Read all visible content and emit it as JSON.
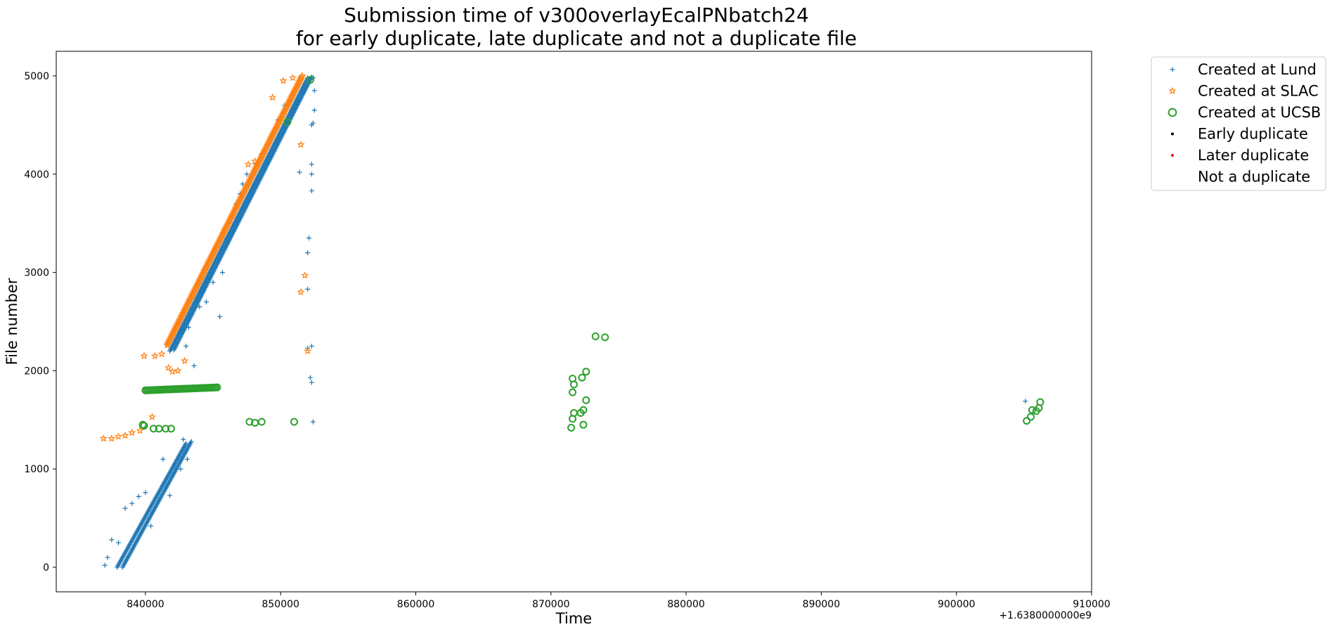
{
  "chart_data": {
    "type": "scatter",
    "title": "Submission time of v300overlayEcalPNbatch24",
    "subtitle": "for early duplicate, late duplicate and not a duplicate file",
    "xlabel": "Time",
    "ylabel": "File number",
    "x_offset_label": "+1.6380000000e9",
    "x_offset": 1638000000,
    "xlim": [
      833400,
      910000
    ],
    "ylim": [
      -250,
      5250
    ],
    "x_ticks": [
      840000,
      850000,
      860000,
      870000,
      880000,
      890000,
      900000,
      910000
    ],
    "y_ticks": [
      0,
      1000,
      2000,
      3000,
      4000,
      5000
    ],
    "grid": false,
    "legend_position": "outside-right",
    "legend": [
      {
        "label": "Created at Lund",
        "marker": "+",
        "color": "#1f77b4"
      },
      {
        "label": "Created at SLAC",
        "marker": "*",
        "color": "#ff7f0e"
      },
      {
        "label": "Created at UCSB",
        "marker": "o",
        "color": "#2ca02c"
      },
      {
        "label": "Early duplicate",
        "marker": ".",
        "color": "#000000"
      },
      {
        "label": "Later duplicate",
        "marker": ".",
        "color": "#ff0000"
      },
      {
        "label": "Not a duplicate",
        "marker": "none",
        "color": "#ffffff"
      }
    ],
    "series": [
      {
        "name": "Created at Lund",
        "color": "#1f77b4",
        "marker": "+",
        "segments": [
          {
            "x": [
              837900,
              843000
            ],
            "y": [
              0,
              1260
            ]
          },
          {
            "x": [
              838300,
              843400
            ],
            "y": [
              0,
              1280
            ]
          },
          {
            "x": [
              841800,
              852000
            ],
            "y": [
              2200,
              4980
            ]
          },
          {
            "x": [
              842100,
              852300
            ],
            "y": [
              2210,
              4990
            ]
          }
        ],
        "points": [
          [
            837000,
            20
          ],
          [
            837200,
            100
          ],
          [
            837500,
            280
          ],
          [
            838000,
            250
          ],
          [
            838500,
            600
          ],
          [
            839000,
            650
          ],
          [
            839500,
            720
          ],
          [
            840000,
            760
          ],
          [
            840400,
            420
          ],
          [
            841300,
            1100
          ],
          [
            841800,
            730
          ],
          [
            842600,
            1000
          ],
          [
            843100,
            1100
          ],
          [
            842800,
            1300
          ],
          [
            843600,
            2050
          ],
          [
            843000,
            2250
          ],
          [
            843200,
            2440
          ],
          [
            844000,
            2650
          ],
          [
            844500,
            2700
          ],
          [
            845000,
            2900
          ],
          [
            845500,
            2550
          ],
          [
            845700,
            3000
          ],
          [
            846000,
            3350
          ],
          [
            846200,
            3500
          ],
          [
            846700,
            3700
          ],
          [
            847000,
            3800
          ],
          [
            847200,
            3900
          ],
          [
            847500,
            4000
          ],
          [
            848200,
            4100
          ],
          [
            848600,
            4200
          ],
          [
            849000,
            4300
          ],
          [
            849800,
            4550
          ],
          [
            850300,
            4700
          ],
          [
            850700,
            4750
          ],
          [
            851400,
            4020
          ],
          [
            851600,
            4850
          ],
          [
            852000,
            2830
          ],
          [
            852000,
            3200
          ],
          [
            852100,
            3350
          ],
          [
            852000,
            2230
          ],
          [
            852300,
            2250
          ],
          [
            852300,
            4000
          ],
          [
            852300,
            4100
          ],
          [
            852300,
            4500
          ],
          [
            852400,
            4520
          ],
          [
            852500,
            4650
          ],
          [
            852500,
            4850
          ],
          [
            852400,
            4980
          ],
          [
            852200,
            1930
          ],
          [
            852300,
            1880
          ],
          [
            852400,
            1480
          ],
          [
            852300,
            3830
          ],
          [
            905100,
            1690
          ]
        ]
      },
      {
        "name": "Created at SLAC",
        "color": "#ff7f0e",
        "marker": "*",
        "segments": [
          {
            "x": [
              841600,
              851600
            ],
            "y": [
              2260,
              5000
            ]
          }
        ],
        "points": [
          [
            836900,
            1310
          ],
          [
            837500,
            1310
          ],
          [
            838000,
            1330
          ],
          [
            838500,
            1340
          ],
          [
            839000,
            1370
          ],
          [
            839600,
            1390
          ],
          [
            840500,
            1530
          ],
          [
            839900,
            2150
          ],
          [
            840700,
            2150
          ],
          [
            841200,
            2170
          ],
          [
            841700,
            2030
          ],
          [
            842000,
            1990
          ],
          [
            842400,
            2000
          ],
          [
            842900,
            2100
          ],
          [
            847600,
            4100
          ],
          [
            848100,
            4130
          ],
          [
            849400,
            4780
          ],
          [
            850200,
            4950
          ],
          [
            850900,
            4980
          ],
          [
            851500,
            4300
          ],
          [
            851800,
            2970
          ],
          [
            851500,
            2800
          ],
          [
            852000,
            2200
          ]
        ]
      },
      {
        "name": "Created at UCSB",
        "color": "#2ca02c",
        "marker": "o",
        "segments": [
          {
            "x": [
              840000,
              845300
            ],
            "y": [
              1800,
              1830
            ]
          }
        ],
        "points": [
          [
            839800,
            1450
          ],
          [
            839900,
            1440
          ],
          [
            840600,
            1410
          ],
          [
            841000,
            1410
          ],
          [
            841500,
            1410
          ],
          [
            841900,
            1410
          ],
          [
            847700,
            1480
          ],
          [
            848100,
            1470
          ],
          [
            848600,
            1480
          ],
          [
            851000,
            1480
          ],
          [
            850500,
            4530
          ],
          [
            852200,
            4960
          ],
          [
            871500,
            1420
          ],
          [
            871600,
            1510
          ],
          [
            871700,
            1570
          ],
          [
            871600,
            1780
          ],
          [
            871700,
            1860
          ],
          [
            871600,
            1920
          ],
          [
            872200,
            1570
          ],
          [
            872400,
            1600
          ],
          [
            872600,
            1700
          ],
          [
            872400,
            1450
          ],
          [
            872300,
            1930
          ],
          [
            872600,
            1990
          ],
          [
            873300,
            2350
          ],
          [
            874000,
            2340
          ],
          [
            905200,
            1490
          ],
          [
            905500,
            1530
          ],
          [
            905600,
            1600
          ],
          [
            905900,
            1590
          ],
          [
            906100,
            1620
          ],
          [
            906200,
            1680
          ]
        ]
      }
    ]
  }
}
